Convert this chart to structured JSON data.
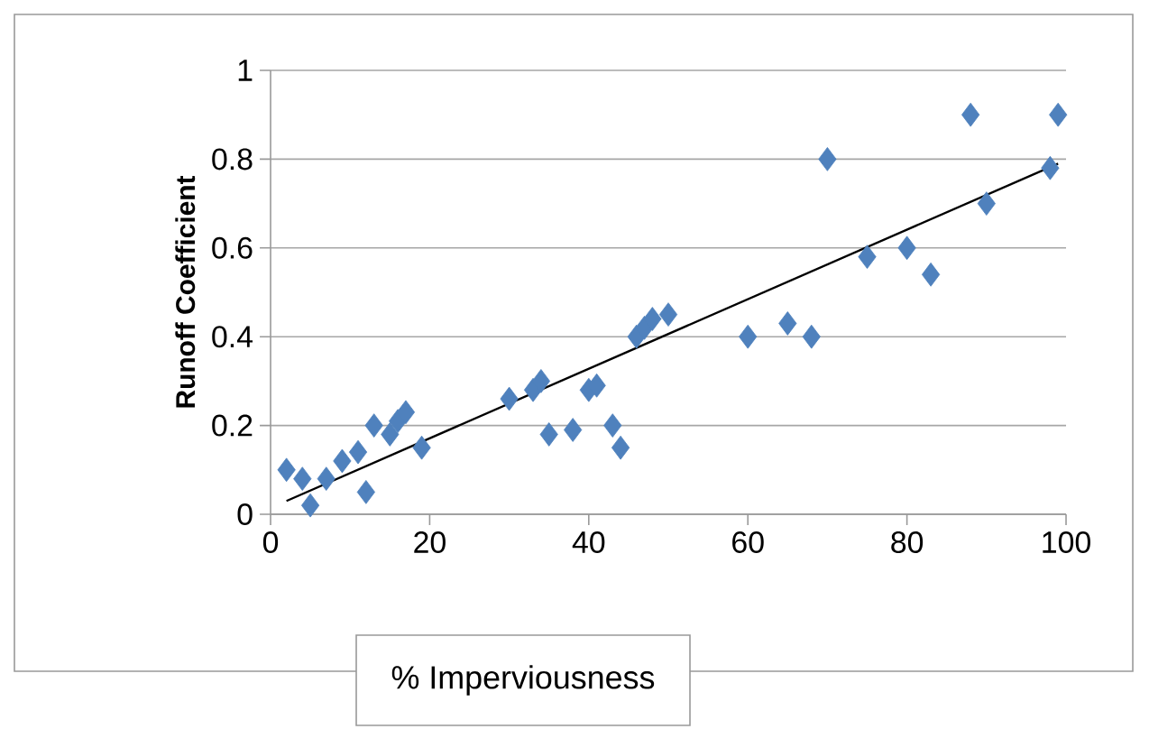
{
  "chart_data": {
    "type": "scatter",
    "xlabel": "% Imperviousness",
    "ylabel": "Runoff Coefficient",
    "xlim": [
      0,
      100
    ],
    "xticks": [
      0,
      20,
      40,
      60,
      80,
      100
    ],
    "ylim": [
      0,
      1
    ],
    "yticks": [
      0,
      {
        "value": 0.2,
        "label": "0.2"
      },
      {
        "value": 0.4,
        "label": "0.4"
      },
      {
        "value": 0.6,
        "label": "0.6"
      },
      {
        "value": 0.8,
        "label": "0.8"
      },
      1
    ],
    "grid": "y",
    "series": [
      {
        "marker": "diamond",
        "color": "#4f81bd",
        "x": [
          2,
          4,
          5,
          7,
          9,
          11,
          12,
          13,
          15,
          16,
          17,
          19,
          30,
          33,
          34,
          35,
          38,
          40,
          41,
          43,
          44,
          46,
          47,
          48,
          50,
          60,
          65,
          68,
          70,
          75,
          80,
          83,
          88,
          90,
          98,
          99
        ],
        "values": [
          0.1,
          0.08,
          0.02,
          0.08,
          0.12,
          0.14,
          0.05,
          0.2,
          0.18,
          0.21,
          0.23,
          0.15,
          0.26,
          0.28,
          0.3,
          0.18,
          0.19,
          0.28,
          0.29,
          0.2,
          0.15,
          0.4,
          0.42,
          0.44,
          0.45,
          0.4,
          0.43,
          0.4,
          0.8,
          0.58,
          0.6,
          0.54,
          0.9,
          0.7,
          0.78,
          0.9
        ]
      },
      {
        "type": "line",
        "marker": "none",
        "line_style": "solid",
        "color": "#000000",
        "x": [
          2,
          99
        ],
        "values": [
          0.03,
          0.79
        ]
      }
    ]
  }
}
